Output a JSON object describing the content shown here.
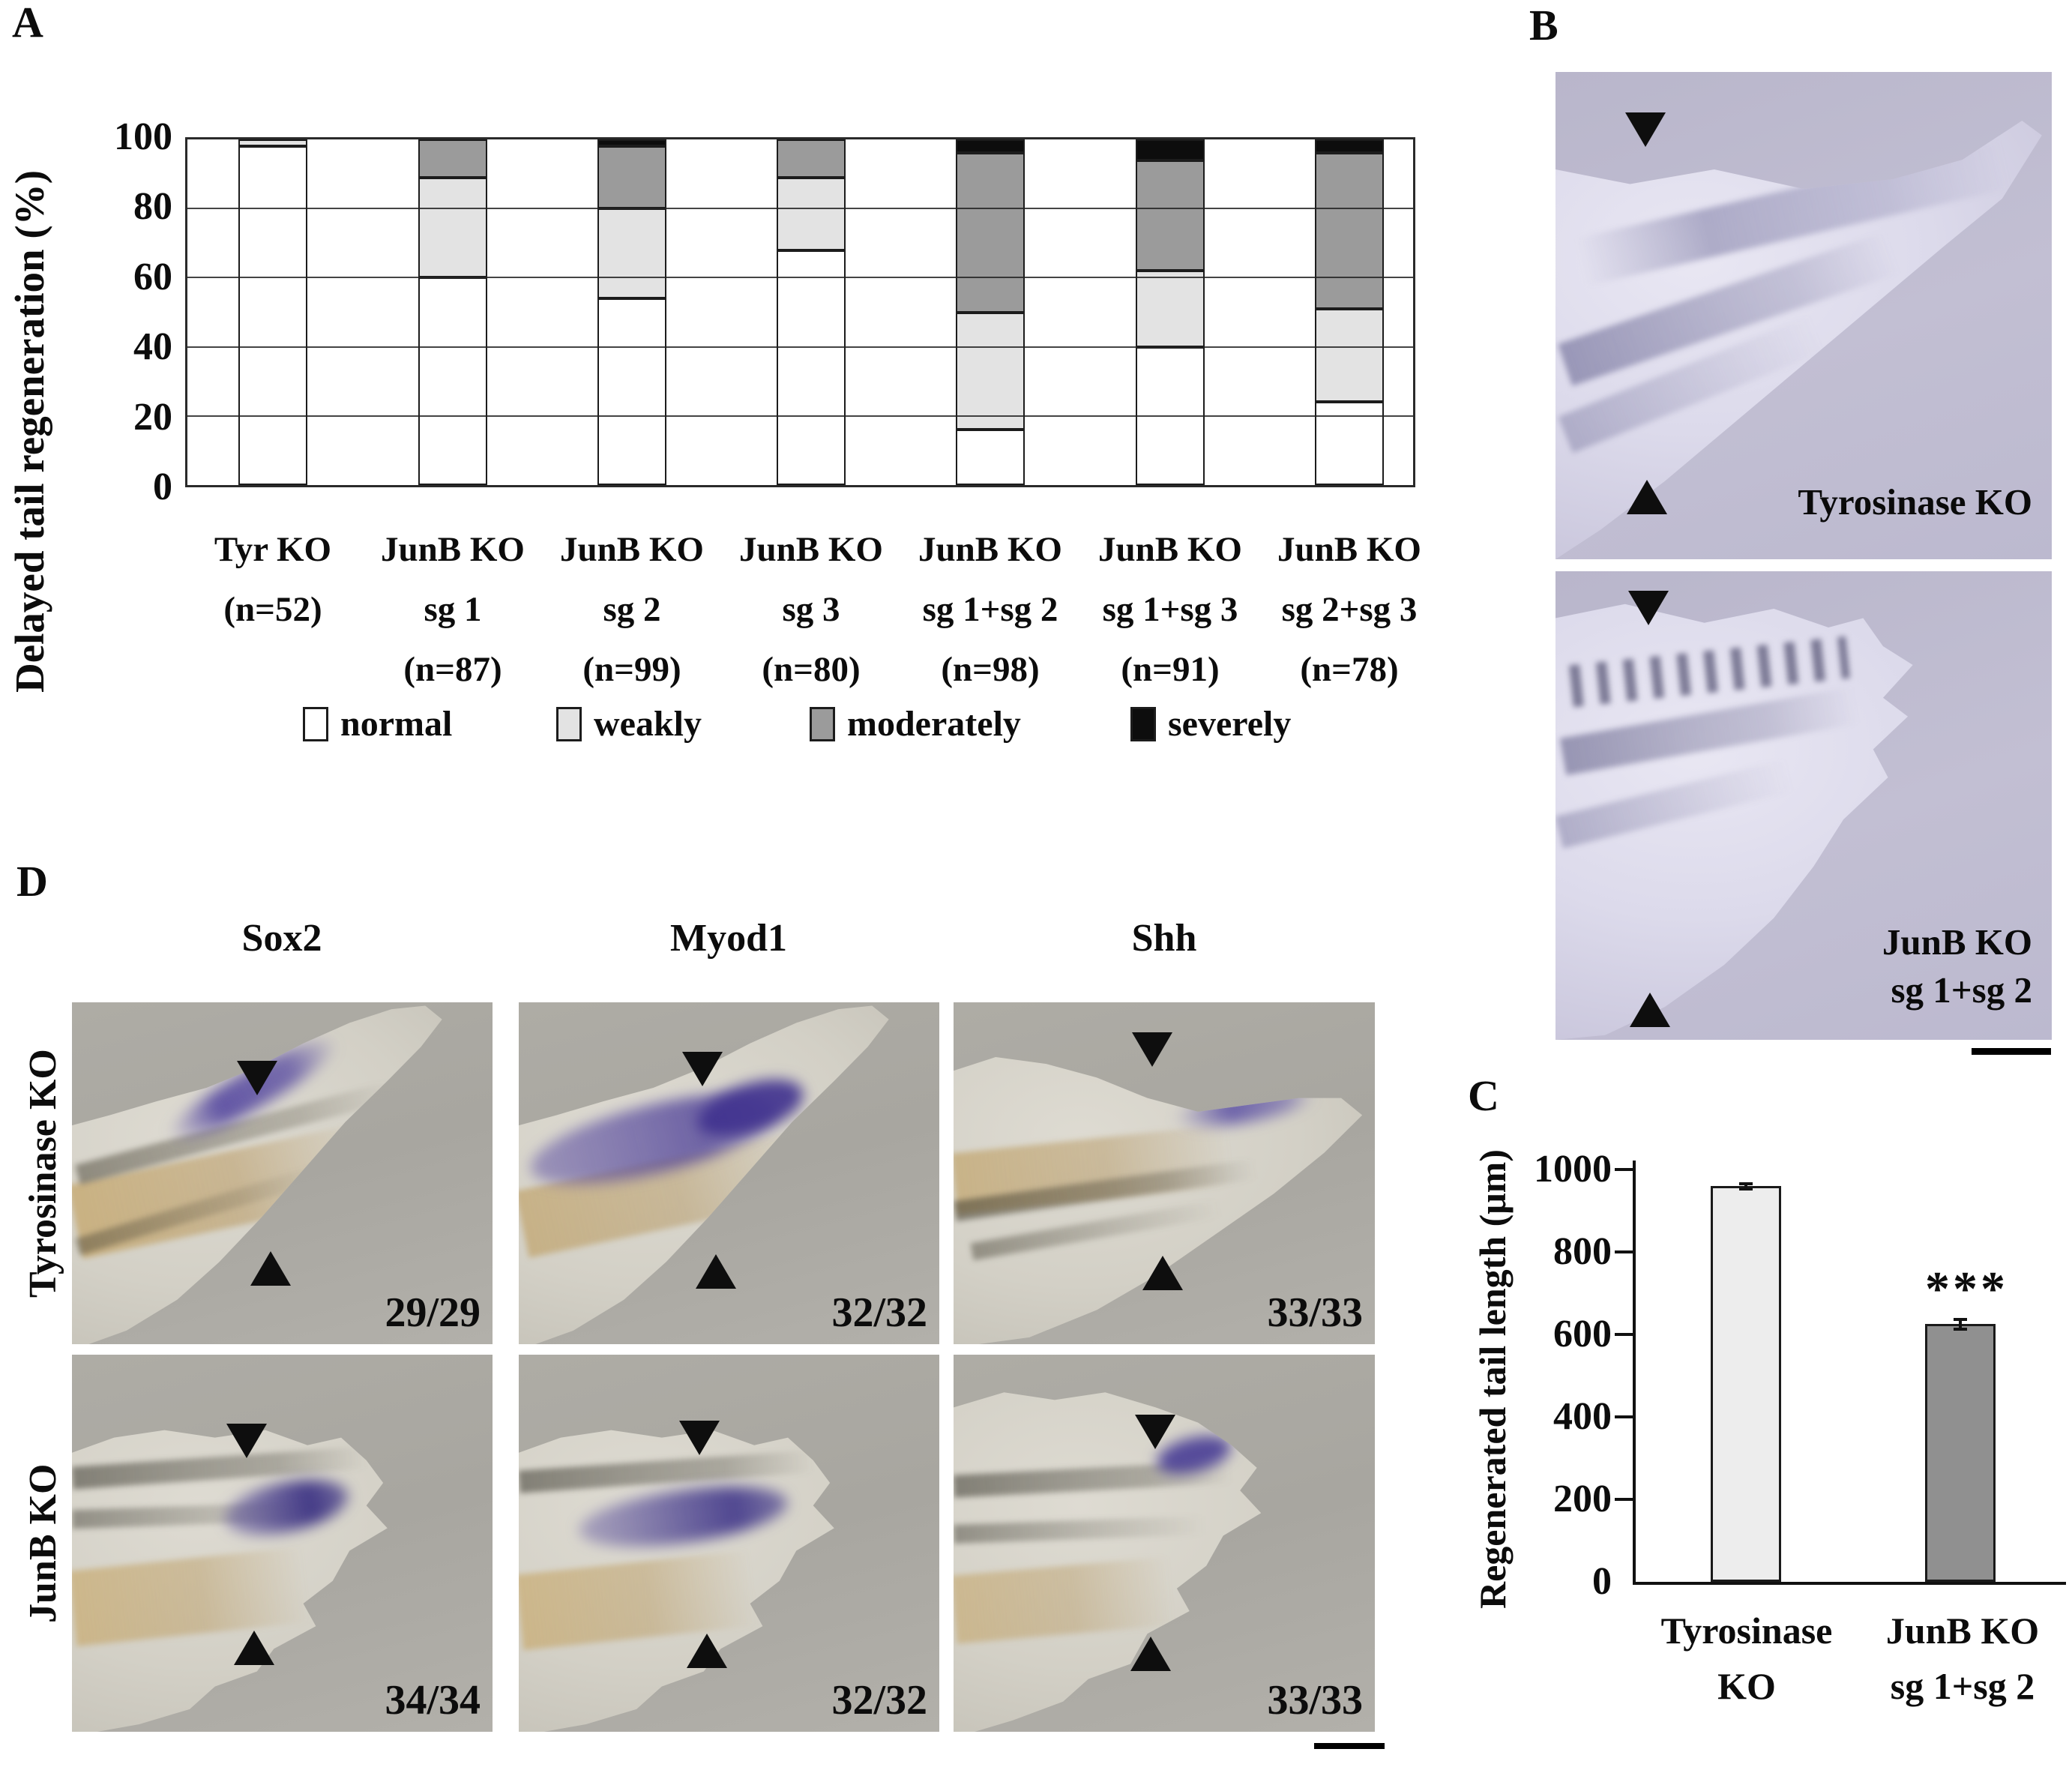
{
  "figure": {
    "panel_a": {
      "label": "A",
      "y_axis_title": "Delayed tail regeneration (%)",
      "y_ticks": [
        "100",
        "80",
        "60",
        "40",
        "20",
        "0"
      ],
      "x_labels": [
        [
          "Tyr KO",
          "(n=52)"
        ],
        [
          "JunB KO",
          "sg 1",
          "(n=87)"
        ],
        [
          "JunB KO",
          "sg 2",
          "(n=99)"
        ],
        [
          "JunB KO",
          "sg 3",
          "(n=80)"
        ],
        [
          "JunB KO",
          "sg 1+sg 2",
          "(n=98)"
        ],
        [
          "JunB KO",
          "sg 1+sg 3",
          "(n=91)"
        ],
        [
          "JunB KO",
          "sg 2+sg 3",
          "(n=78)"
        ]
      ],
      "legend": [
        {
          "label": "normal",
          "color": "#ffffff"
        },
        {
          "label": "weakly",
          "color": "#e3e3e3"
        },
        {
          "label": "moderately",
          "color": "#9b9b9b"
        },
        {
          "label": "severely",
          "color": "#0d0d0d"
        }
      ]
    },
    "panel_b": {
      "label": "B",
      "images": [
        {
          "caption_lines": [
            "Tyrosinase KO"
          ]
        },
        {
          "caption_lines": [
            "JunB KO",
            "sg 1+sg 2"
          ]
        }
      ]
    },
    "panel_c": {
      "label": "C",
      "y_axis_title": "Regenerated tail length (μm)",
      "y_ticks": [
        "1000",
        "800",
        "600",
        "400",
        "200",
        "0"
      ],
      "x_labels": [
        [
          "Tyrosinase",
          "KO"
        ],
        [
          "JunB KO",
          "sg 1+sg 2"
        ]
      ],
      "significance": "***"
    },
    "panel_d": {
      "label": "D",
      "column_headers": [
        "Sox2",
        "Myod1",
        "Shh"
      ],
      "row_headers": [
        "Tyrosinase KO",
        "JunB KO"
      ],
      "counts": [
        [
          "29/29",
          "32/32",
          "33/33"
        ],
        [
          "34/34",
          "32/32",
          "33/33"
        ]
      ]
    }
  },
  "chart_data": [
    {
      "id": "panel_a",
      "type": "bar",
      "stacked": true,
      "title": "",
      "ylabel": "Delayed tail regeneration (%)",
      "ylim": [
        0,
        100
      ],
      "yticks": [
        0,
        20,
        40,
        60,
        80,
        100
      ],
      "grid": true,
      "legend_position": "bottom",
      "categories": [
        "Tyr KO (n=52)",
        "JunB KO sg 1 (n=87)",
        "JunB KO sg 2 (n=99)",
        "JunB KO sg 3 (n=80)",
        "JunB KO sg 1+sg 2 (n=98)",
        "JunB KO sg 1+sg 3 (n=91)",
        "JunB KO sg 2+sg 3 (n=78)"
      ],
      "series": [
        {
          "name": "normal",
          "color": "#ffffff",
          "values": [
            98,
            60,
            54,
            68,
            16,
            40,
            24
          ]
        },
        {
          "name": "weakly",
          "color": "#e3e3e3",
          "values": [
            2,
            29,
            26,
            21,
            34,
            22,
            27
          ]
        },
        {
          "name": "moderately",
          "color": "#9b9b9b",
          "values": [
            0,
            11,
            18,
            11,
            46,
            32,
            45
          ]
        },
        {
          "name": "severely",
          "color": "#0d0d0d",
          "values": [
            0,
            0,
            2,
            0,
            4,
            6,
            4
          ]
        }
      ]
    },
    {
      "id": "panel_c",
      "type": "bar",
      "title": "",
      "ylabel": "Regenerated tail length (μm)",
      "ylim": [
        0,
        1000
      ],
      "yticks": [
        0,
        200,
        400,
        600,
        800,
        1000
      ],
      "categories": [
        "Tyrosinase KO",
        "JunB KO sg 1+sg 2"
      ],
      "values": [
        960,
        625
      ],
      "error_bars": [
        10,
        15
      ],
      "bar_colors": [
        "#ededed",
        "#909090"
      ],
      "annotations": [
        "",
        "***"
      ]
    }
  ]
}
